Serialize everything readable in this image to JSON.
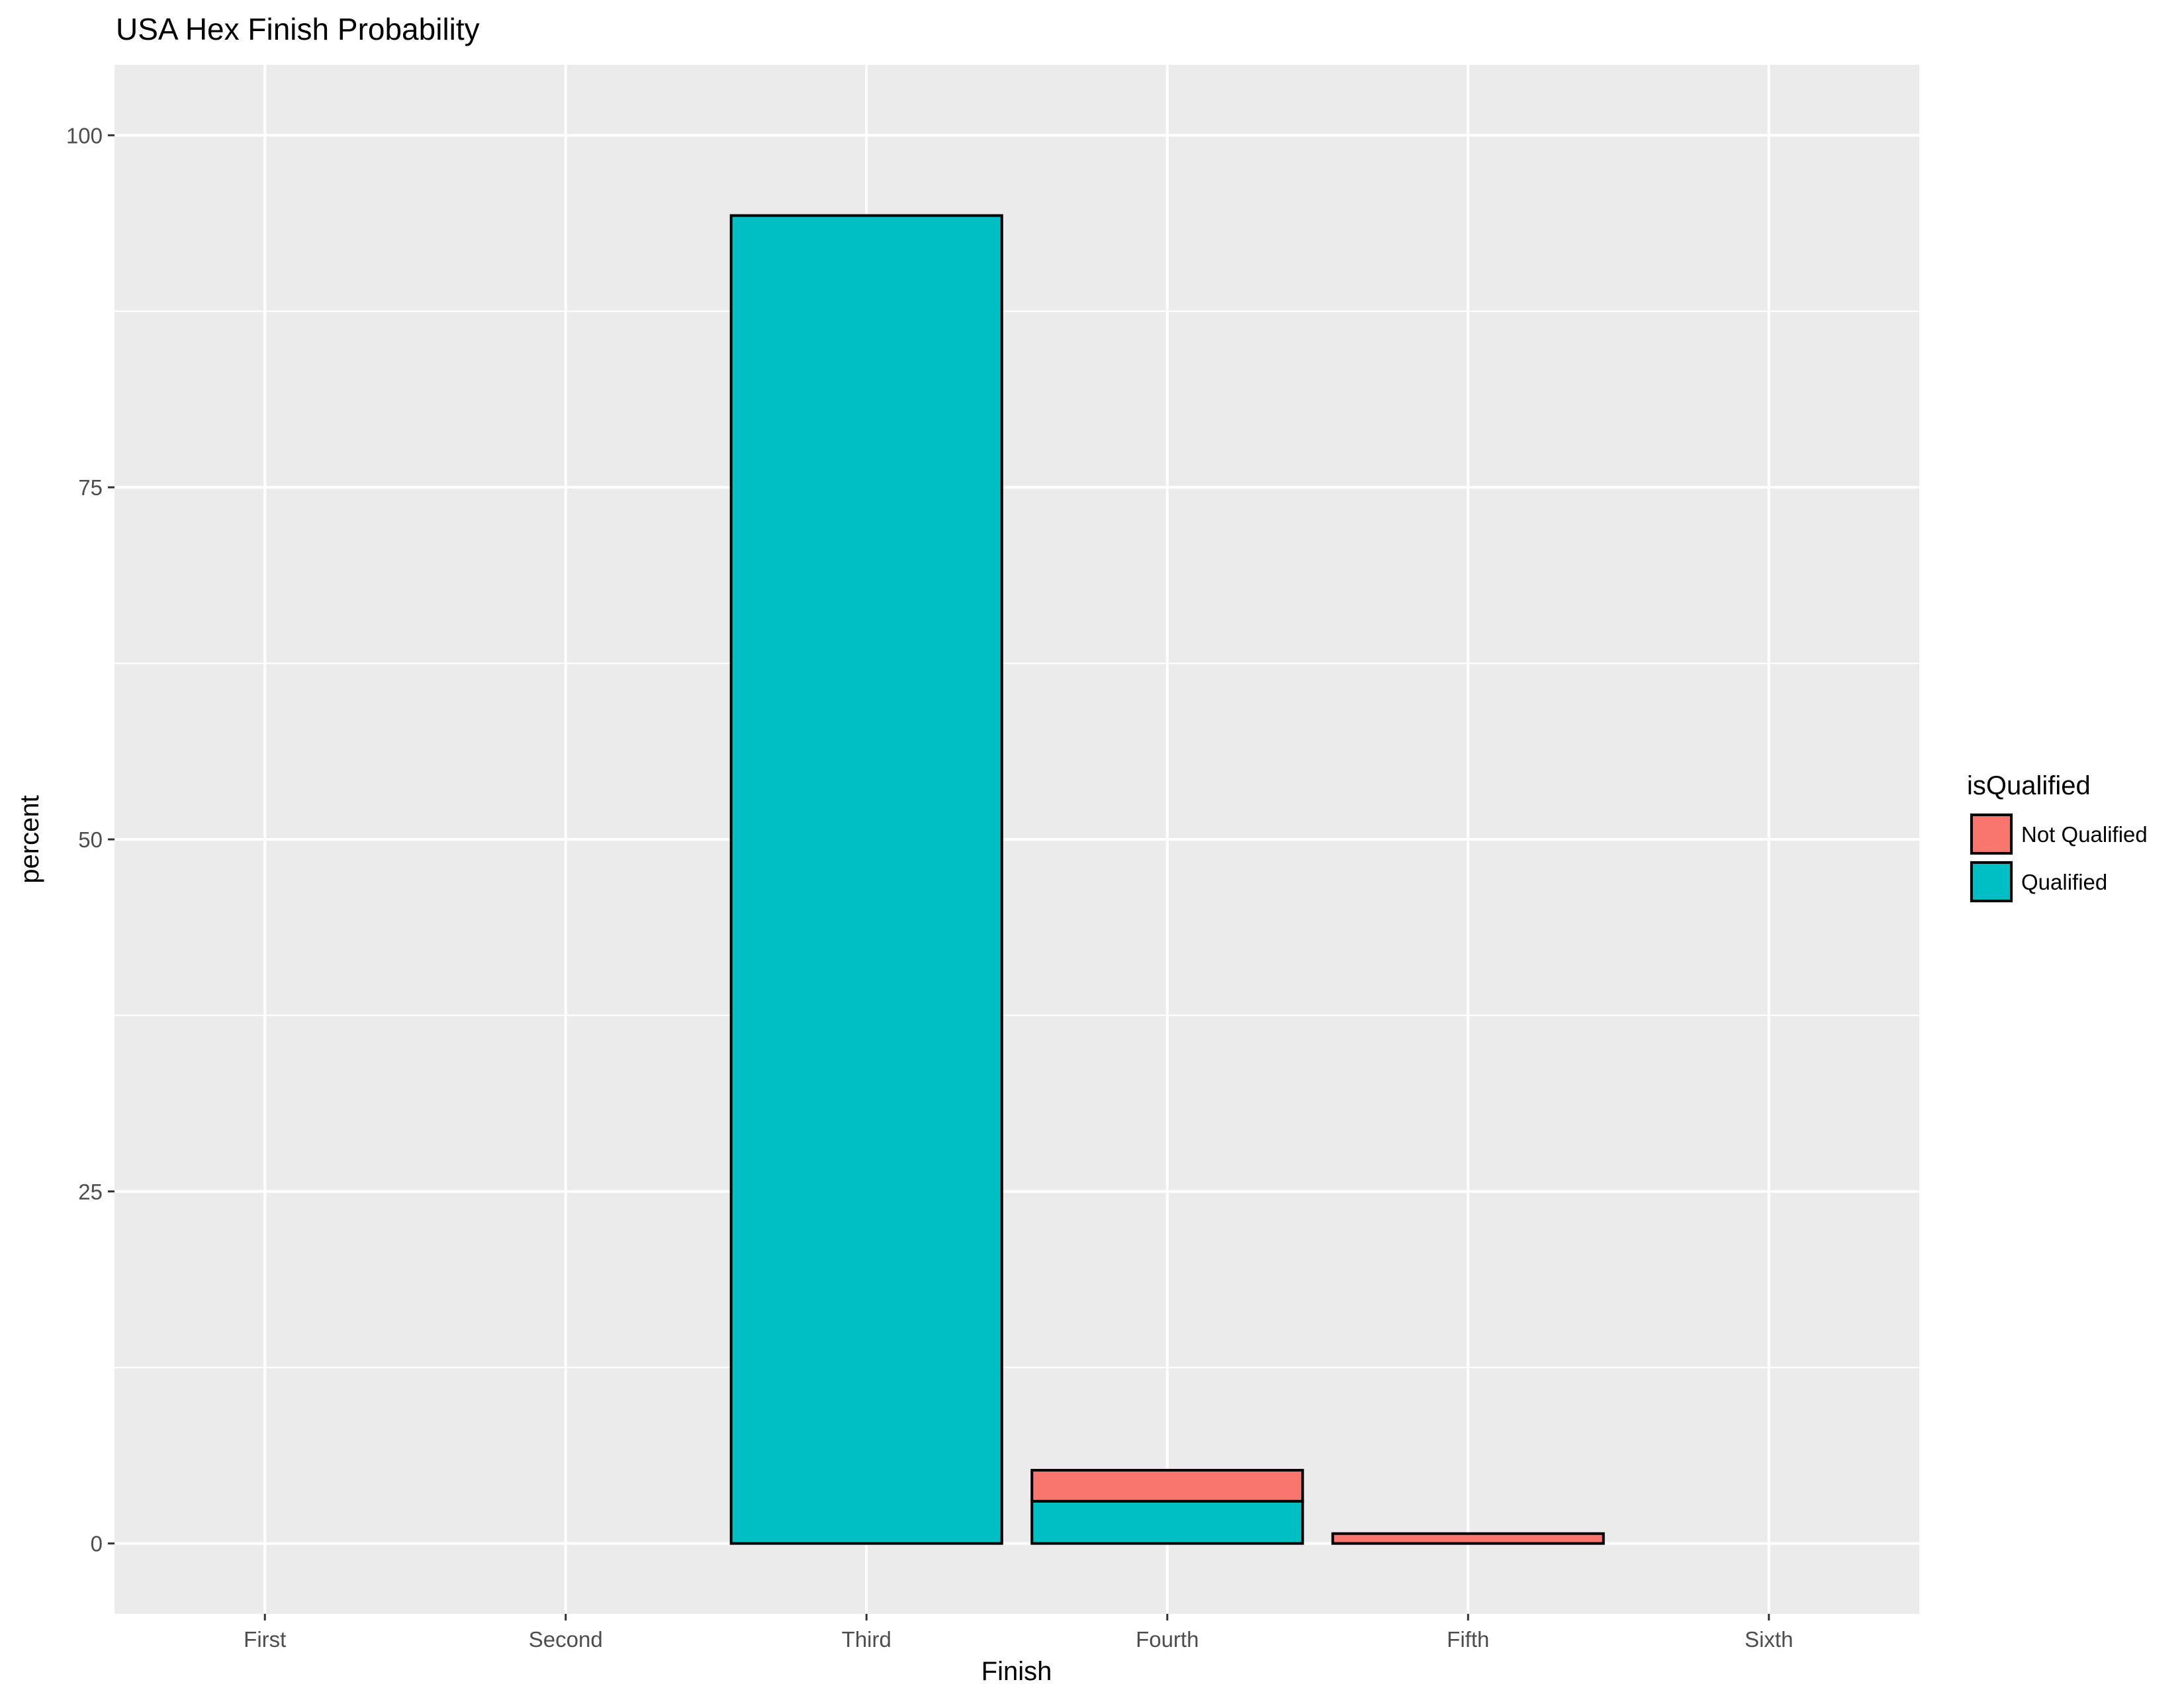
{
  "chart_data": {
    "type": "bar",
    "stacked": true,
    "title": "USA Hex Finish Probability",
    "xlabel": "Finish",
    "ylabel": "percent",
    "categories": [
      "First",
      "Second",
      "Third",
      "Fourth",
      "Fifth",
      "Sixth"
    ],
    "series": [
      {
        "name": "Qualified",
        "color": "#00BFC4",
        "values": [
          0,
          0,
          94.3,
          3.0,
          0,
          0
        ]
      },
      {
        "name": "Not Qualified",
        "color": "#F8766D",
        "values": [
          0,
          0,
          0,
          2.2,
          0.7,
          0
        ]
      }
    ],
    "ylim": [
      -5,
      105
    ],
    "yticks": [
      0,
      25,
      50,
      75,
      100
    ],
    "grid": true,
    "legend": {
      "title": "isQualified",
      "position": "right",
      "entries": [
        {
          "label": "Not Qualified",
          "color": "#F8766D"
        },
        {
          "label": "Qualified",
          "color": "#00BFC4"
        }
      ]
    },
    "panel_background": "#EBEBEB",
    "gridline_color": "#FFFFFF",
    "bar_outline_color": "#000000"
  }
}
